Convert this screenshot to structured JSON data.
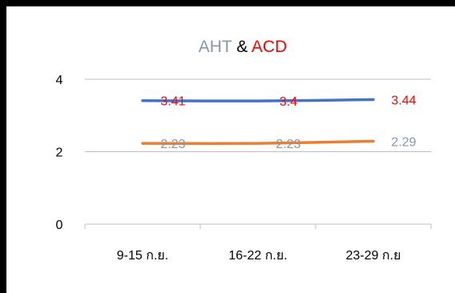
{
  "chart_data": {
    "type": "line",
    "title_parts": [
      {
        "text": "AHT",
        "color": "#8497B0"
      },
      {
        "text": " & ",
        "color": "#000000"
      },
      {
        "text": "ACD",
        "color": "#FF0000"
      }
    ],
    "categories": [
      "9-15 ก.ย.",
      "16-22 ก.ย.",
      "23-29 ก.ย"
    ],
    "ylim": [
      0,
      4
    ],
    "yticks": [
      "0",
      "2",
      "4"
    ],
    "grid": true,
    "series": [
      {
        "name": "ACD",
        "values": [
          3.41,
          3.4,
          3.44
        ],
        "labels": [
          "3.41",
          "3.4",
          "3.44"
        ],
        "color": "#4472C4",
        "label_color": "#FF0000"
      },
      {
        "name": "AHT",
        "values": [
          2.23,
          2.23,
          2.29
        ],
        "labels": [
          "2.23",
          "2.23",
          "2.29"
        ],
        "color": "#ED7D31",
        "label_color": "#8497B0"
      }
    ]
  }
}
